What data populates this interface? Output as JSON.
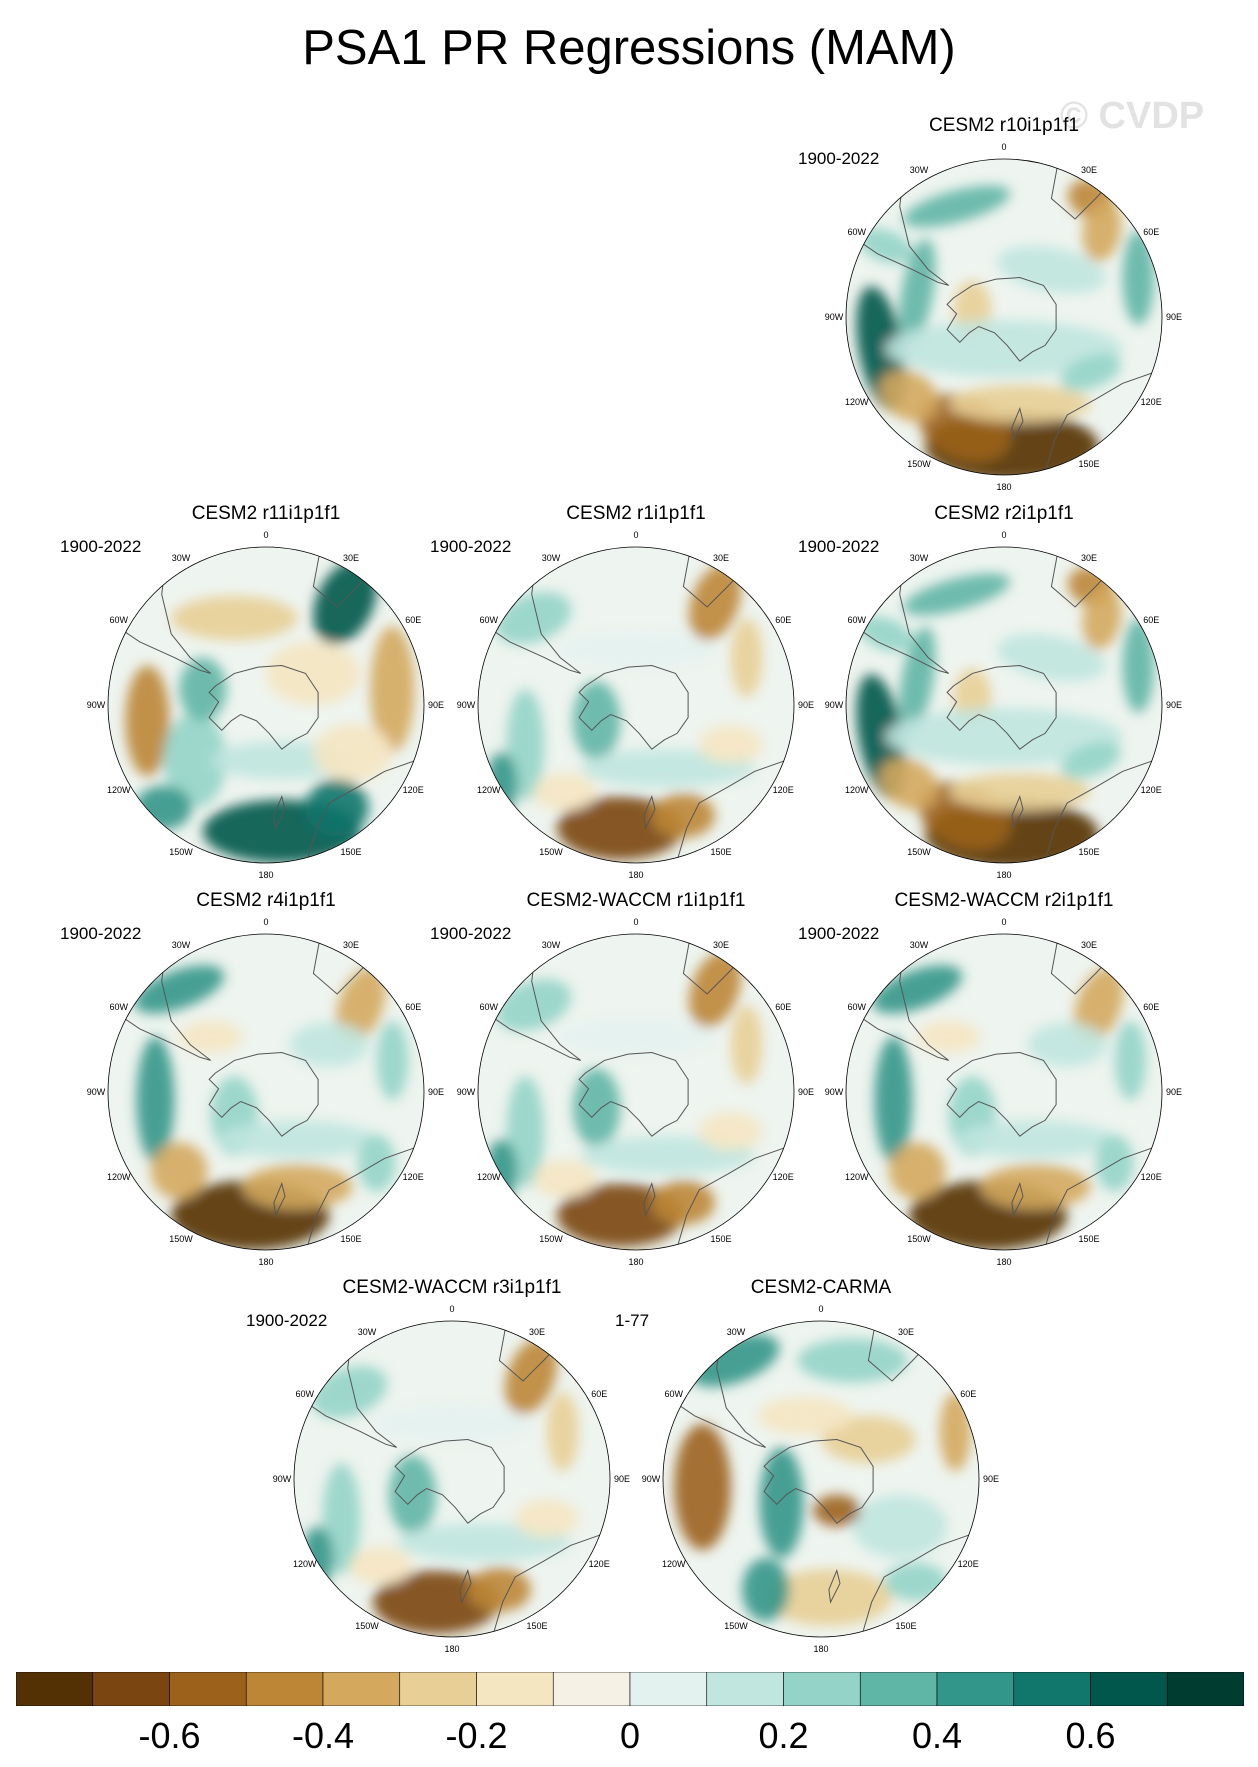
{
  "figure": {
    "title": "PSA1 PR Regressions (MAM)",
    "watermark": "© CVDP"
  },
  "lon_labels": [
    "0",
    "30E",
    "60E",
    "90E",
    "120E",
    "150E",
    "180",
    "150W",
    "120W",
    "90W",
    "60W",
    "30W"
  ],
  "panels": [
    {
      "title": "CESM2 r10i1p1f1",
      "years": "1900-2022",
      "pattern": "a"
    },
    {
      "title": "CESM2 r11i1p1f1",
      "years": "1900-2022",
      "pattern": "b"
    },
    {
      "title": "CESM2 r1i1p1f1",
      "years": "1900-2022",
      "pattern": "c"
    },
    {
      "title": "CESM2 r2i1p1f1",
      "years": "1900-2022",
      "pattern": "a"
    },
    {
      "title": "CESM2 r4i1p1f1",
      "years": "1900-2022",
      "pattern": "d"
    },
    {
      "title": "CESM2-WACCM r1i1p1f1",
      "years": "1900-2022",
      "pattern": "c"
    },
    {
      "title": "CESM2-WACCM r2i1p1f1",
      "years": "1900-2022",
      "pattern": "d"
    },
    {
      "title": "CESM2-WACCM r3i1p1f1",
      "years": "1900-2022",
      "pattern": "c"
    },
    {
      "title": "CESM2-CARMA",
      "years": "1-77",
      "pattern": "e"
    }
  ],
  "colorbar": {
    "colors": [
      "#543005",
      "#7a4510",
      "#9c621c",
      "#bd8636",
      "#d4a95e",
      "#e8cf96",
      "#f5e6c2",
      "#f5f1e4",
      "#e4f2ef",
      "#c0e6df",
      "#94d4c8",
      "#5fb5a6",
      "#33968a",
      "#11766c",
      "#01574b",
      "#003c30"
    ],
    "tick_labels": [
      "-0.6",
      "-0.4",
      "-0.2",
      "0",
      "0.2",
      "0.4",
      "0.6"
    ],
    "ticks": [
      -0.6,
      -0.4,
      -0.2,
      0,
      0.2,
      0.4,
      0.6
    ],
    "range": [
      -0.8,
      0.8
    ]
  }
}
